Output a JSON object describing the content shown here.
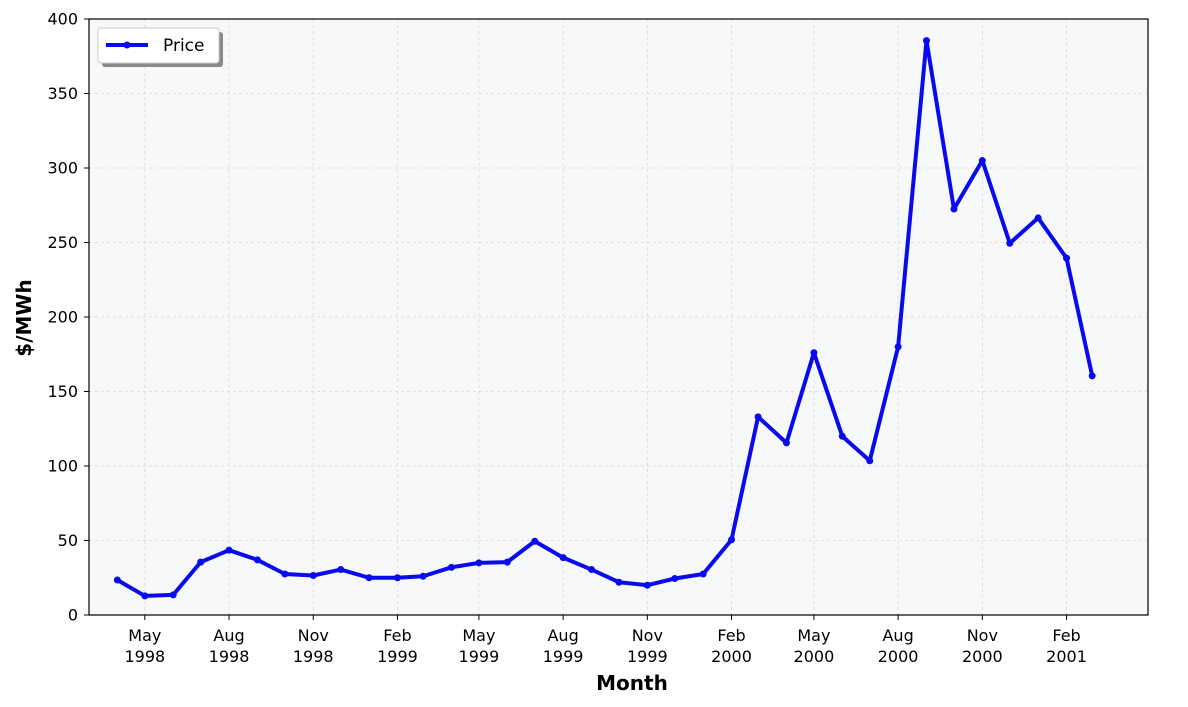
{
  "chart_data": {
    "type": "line",
    "xlabel": "Month",
    "ylabel": "$/MWh",
    "ylim": [
      0,
      400
    ],
    "xlim": [
      "1998-03-01",
      "2001-05-01"
    ],
    "grid": true,
    "legend": "top-left",
    "colors": {
      "line": "#0a0aee",
      "plot_bg": "#f7f8fa",
      "grid": "#d9d9d9"
    },
    "y_ticks": [
      0,
      50,
      100,
      150,
      200,
      250,
      300,
      350,
      400
    ],
    "x_ticks": [
      {
        "date": "1998-05-01",
        "label": [
          "May",
          "1998"
        ]
      },
      {
        "date": "1998-08-01",
        "label": [
          "Aug",
          "1998"
        ]
      },
      {
        "date": "1998-11-01",
        "label": [
          "Nov",
          "1998"
        ]
      },
      {
        "date": "1999-02-01",
        "label": [
          "Feb",
          "1999"
        ]
      },
      {
        "date": "1999-05-01",
        "label": [
          "May",
          "1999"
        ]
      },
      {
        "date": "1999-08-01",
        "label": [
          "Aug",
          "1999"
        ]
      },
      {
        "date": "1999-11-01",
        "label": [
          "Nov",
          "1999"
        ]
      },
      {
        "date": "2000-02-01",
        "label": [
          "Feb",
          "2000"
        ]
      },
      {
        "date": "2000-05-01",
        "label": [
          "May",
          "2000"
        ]
      },
      {
        "date": "2000-08-01",
        "label": [
          "Aug",
          "2000"
        ]
      },
      {
        "date": "2000-11-01",
        "label": [
          "Nov",
          "2000"
        ]
      },
      {
        "date": "2001-02-01",
        "label": [
          "Feb",
          "2001"
        ]
      }
    ],
    "series": [
      {
        "name": "Price",
        "points": [
          {
            "x": "1998-04-01",
            "y": 23.5
          },
          {
            "x": "1998-05-01",
            "y": 12.8
          },
          {
            "x": "1998-06-01",
            "y": 13.5
          },
          {
            "x": "1998-07-01",
            "y": 35.5
          },
          {
            "x": "1998-08-01",
            "y": 43.5
          },
          {
            "x": "1998-09-01",
            "y": 37.0
          },
          {
            "x": "1998-10-01",
            "y": 27.5
          },
          {
            "x": "1998-11-01",
            "y": 26.5
          },
          {
            "x": "1998-12-01",
            "y": 30.5
          },
          {
            "x": "1999-01-01",
            "y": 25.0
          },
          {
            "x": "1999-02-01",
            "y": 25.0
          },
          {
            "x": "1999-03-01",
            "y": 26.0
          },
          {
            "x": "1999-04-01",
            "y": 32.0
          },
          {
            "x": "1999-05-01",
            "y": 35.0
          },
          {
            "x": "1999-06-01",
            "y": 35.5
          },
          {
            "x": "1999-07-01",
            "y": 49.5
          },
          {
            "x": "1999-08-01",
            "y": 38.5
          },
          {
            "x": "1999-09-01",
            "y": 30.5
          },
          {
            "x": "1999-10-01",
            "y": 22.0
          },
          {
            "x": "1999-11-01",
            "y": 20.0
          },
          {
            "x": "1999-12-01",
            "y": 24.5
          },
          {
            "x": "2000-01-01",
            "y": 27.5
          },
          {
            "x": "2000-02-01",
            "y": 50.5
          },
          {
            "x": "2000-03-01",
            "y": 133.0
          },
          {
            "x": "2000-04-01",
            "y": 115.5
          },
          {
            "x": "2000-05-01",
            "y": 176.0
          },
          {
            "x": "2000-06-01",
            "y": 120.0
          },
          {
            "x": "2000-07-01",
            "y": 103.5
          },
          {
            "x": "2000-08-01",
            "y": 180.0
          },
          {
            "x": "2000-09-01",
            "y": 385.5
          },
          {
            "x": "2000-10-01",
            "y": 272.5
          },
          {
            "x": "2000-11-01",
            "y": 305.0
          },
          {
            "x": "2000-12-01",
            "y": 249.5
          },
          {
            "x": "2001-01-01",
            "y": 266.5
          },
          {
            "x": "2001-02-01",
            "y": 239.5
          },
          {
            "x": "2001-03-01",
            "y": 160.5
          }
        ]
      }
    ]
  }
}
